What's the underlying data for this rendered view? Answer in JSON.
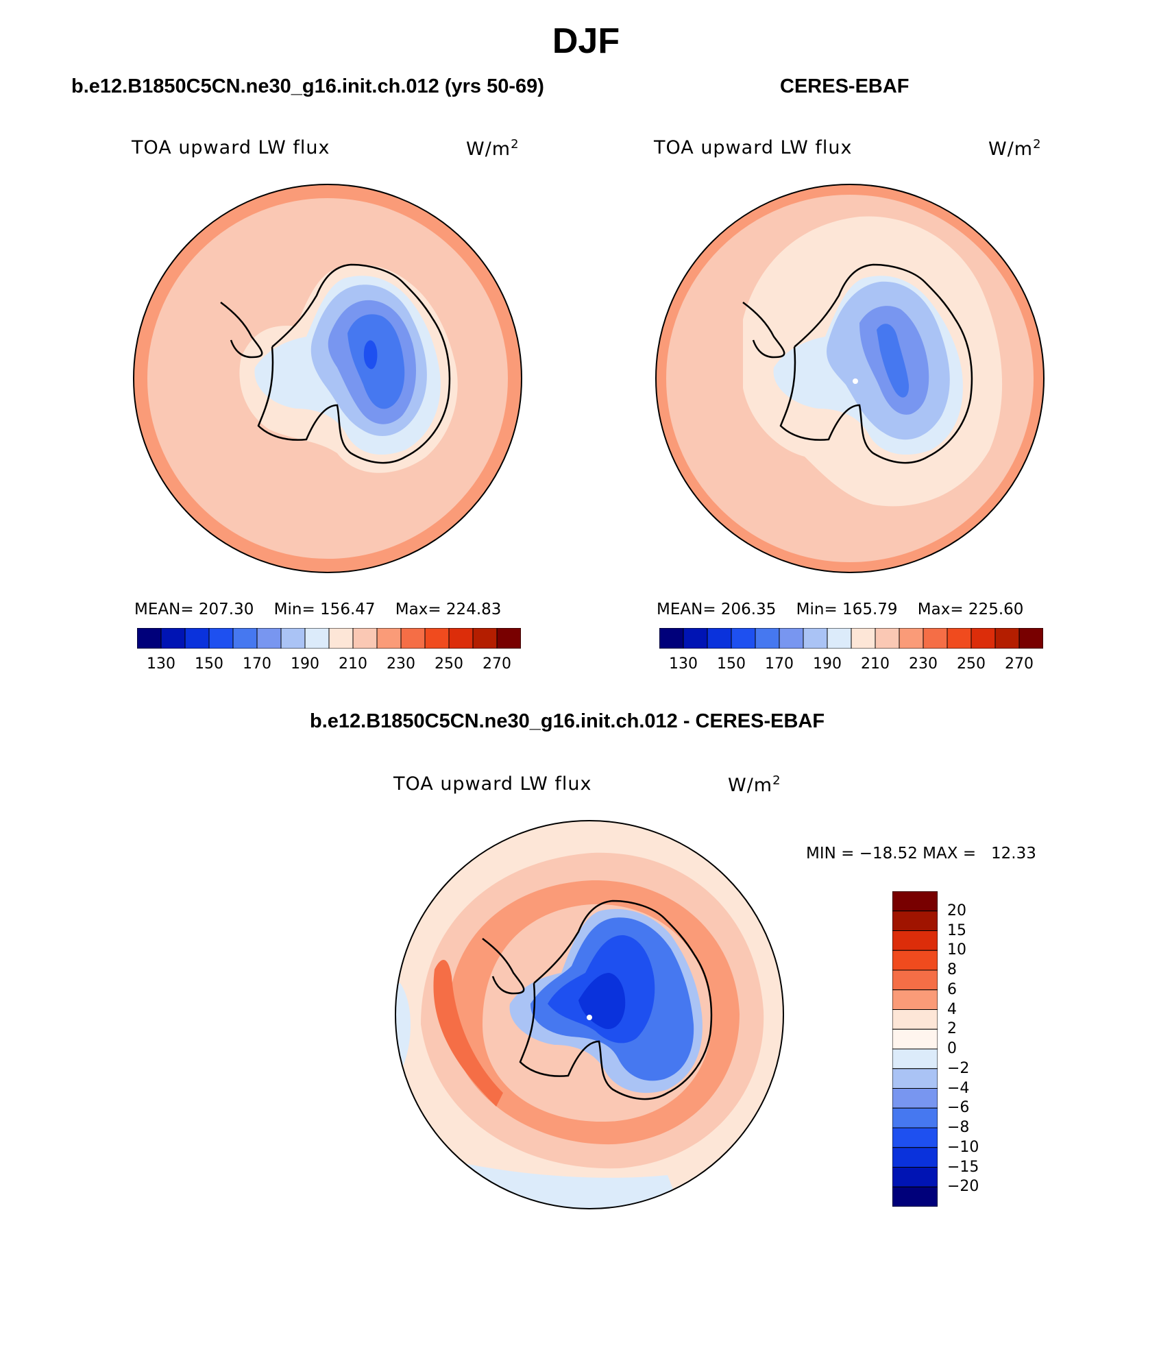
{
  "figure_title": "DJF",
  "panels": [
    {
      "title": "b.e12.B1850C5CN.ne30_g16.init.ch.012 (yrs 50-69)",
      "variable": "TOA upward LW flux",
      "units": "W/m",
      "units_power": "2",
      "stats": {
        "mean_label": "MEAN=",
        "mean": "207.30",
        "min_label": "Min=",
        "min": "156.47",
        "max_label": "Max=",
        "max": "224.83"
      }
    },
    {
      "title": "CERES-EBAF",
      "variable": "TOA upward LW flux",
      "units": "W/m",
      "units_power": "2",
      "stats": {
        "mean_label": "MEAN=",
        "mean": "206.35",
        "min_label": "Min=",
        "min": "165.79",
        "max_label": "Max=",
        "max": "225.60"
      }
    },
    {
      "title": "b.e12.B1850C5CN.ne30_g16.init.ch.012 - CERES-EBAF",
      "variable": "TOA upward LW flux",
      "units": "W/m",
      "units_power": "2",
      "stats": {
        "min_label": "MIN =",
        "min": "−18.52",
        "max_label": "MAX =",
        "max": "12.33"
      }
    }
  ],
  "colorbar_abs": {
    "colors": [
      "#00007a",
      "#0014b4",
      "#0a32dc",
      "#1e50f0",
      "#4678f0",
      "#7896f0",
      "#aac3f5",
      "#dcebfa",
      "#fde6d7",
      "#fac8b4",
      "#fa9b78",
      "#f56e46",
      "#f04b1e",
      "#dc2d0a",
      "#b41e00",
      "#780000"
    ],
    "tick_labels": [
      "130",
      "150",
      "170",
      "190",
      "210",
      "230",
      "250",
      "270"
    ]
  },
  "colorbar_diff": {
    "colors": [
      "#780000",
      "#a01400",
      "#dc2d0a",
      "#f04b1e",
      "#f56e46",
      "#fa9b78",
      "#fde6d7",
      "#fff5ee",
      "#dcebfa",
      "#aac3f5",
      "#7896f0",
      "#4678f0",
      "#1e50f0",
      "#0a32dc",
      "#0014b4",
      "#00007a"
    ],
    "tick_labels": [
      "20",
      "15",
      "10",
      "8",
      "6",
      "4",
      "2",
      "0",
      "−2",
      "−4",
      "−6",
      "−8",
      "−10",
      "−15",
      "−20"
    ]
  }
}
